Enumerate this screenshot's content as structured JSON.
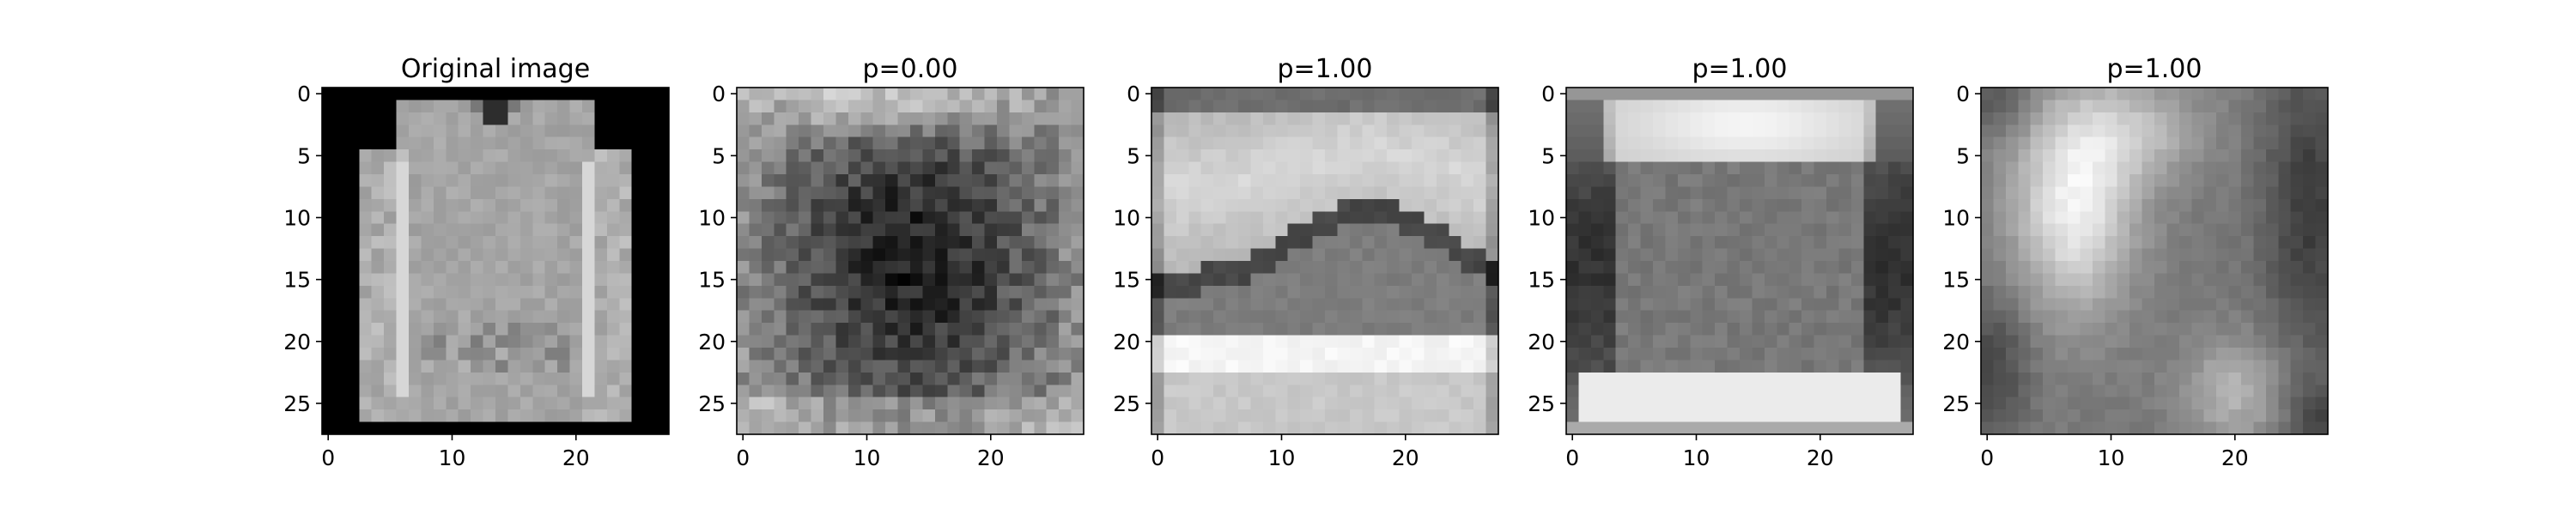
{
  "chart_data": [
    {
      "type": "heatmap",
      "title": "Original image",
      "xticks": [
        0,
        10,
        20
      ],
      "yticks": [
        0,
        5,
        10,
        15,
        20,
        25
      ],
      "xlim": [
        -0.5,
        27.5
      ],
      "ylim": [
        27.5,
        -0.5
      ],
      "colormap": "gray",
      "content": "pullover",
      "grid": false
    },
    {
      "type": "heatmap",
      "title": "p=0.00",
      "xticks": [
        0,
        10,
        20
      ],
      "yticks": [
        0,
        5,
        10,
        15,
        20,
        25
      ],
      "xlim": [
        -0.5,
        27.5
      ],
      "ylim": [
        27.5,
        -0.5
      ],
      "colormap": "gray",
      "content": "dark-blob",
      "grid": false
    },
    {
      "type": "heatmap",
      "title": "p=1.00",
      "xticks": [
        0,
        10,
        20
      ],
      "yticks": [
        0,
        5,
        10,
        15,
        20,
        25
      ],
      "xlim": [
        -0.5,
        27.5
      ],
      "ylim": [
        27.5,
        -0.5
      ],
      "colormap": "gray",
      "content": "sneaker",
      "grid": false
    },
    {
      "type": "heatmap",
      "title": "p=1.00",
      "xticks": [
        0,
        10,
        20
      ],
      "yticks": [
        0,
        5,
        10,
        15,
        20,
        25
      ],
      "xlim": [
        -0.5,
        27.5
      ],
      "ylim": [
        27.5,
        -0.5
      ],
      "colormap": "gray",
      "content": "bag",
      "grid": false
    },
    {
      "type": "heatmap",
      "title": "p=1.00",
      "xticks": [
        0,
        10,
        20
      ],
      "yticks": [
        0,
        5,
        10,
        15,
        20,
        25
      ],
      "xlim": [
        -0.5,
        27.5
      ],
      "ylim": [
        27.5,
        -0.5
      ],
      "colormap": "gray",
      "content": "ankle-boot",
      "grid": false
    }
  ]
}
